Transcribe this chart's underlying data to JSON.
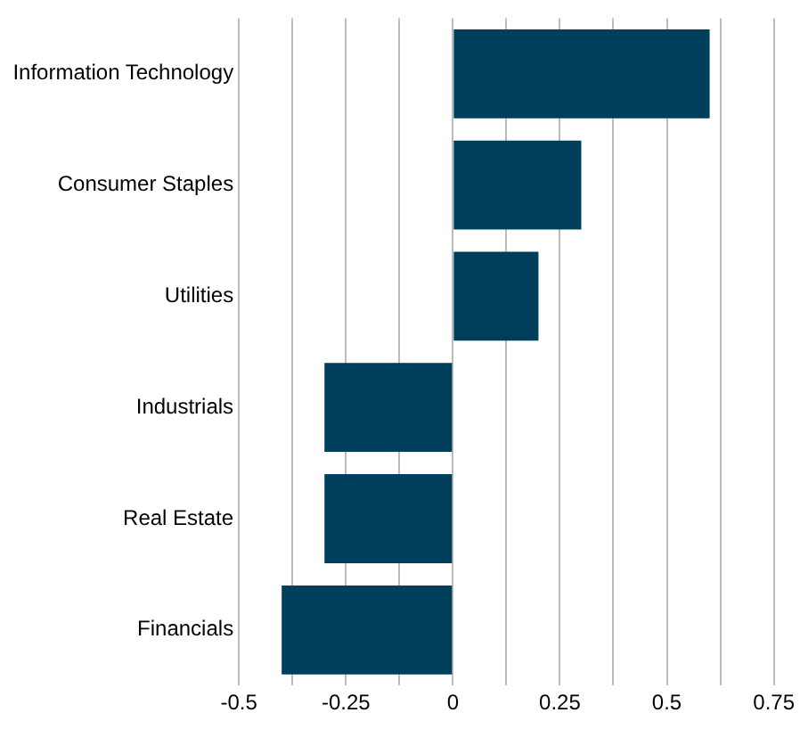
{
  "chart_data": {
    "type": "bar",
    "orientation": "horizontal",
    "categories": [
      "Information Technology",
      "Consumer Staples",
      "Utilities",
      "Industrials",
      "Real Estate",
      "Financials"
    ],
    "values": [
      0.6,
      0.3,
      0.2,
      -0.3,
      -0.3,
      -0.4
    ],
    "color": "#003f5c",
    "xlim": [
      -0.5,
      0.75
    ],
    "xticks": [
      -0.5,
      {
        "value": -0.375,
        "label": null
      },
      -0.25,
      {
        "value": -0.125,
        "label": null
      },
      0,
      {
        "value": 0.125,
        "label": null
      },
      0.25,
      {
        "value": 0.375,
        "label": null
      },
      0.5,
      {
        "value": 0.625,
        "label": null
      },
      0.75
    ],
    "grid": "x",
    "legend": false
  }
}
